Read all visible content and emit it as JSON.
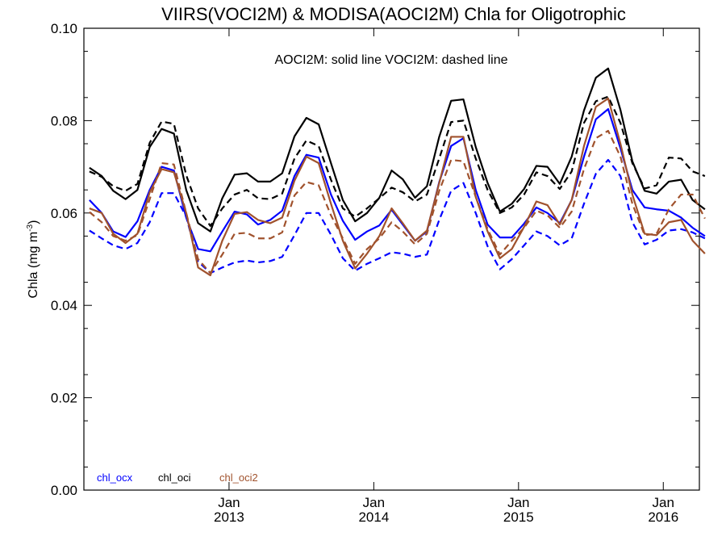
{
  "chart_data": {
    "type": "line",
    "title": "VIIRS(VOCI2M) & MODISA(AOCI2M)  Chla for Oligotrophic",
    "annotation": "AOCI2M: solid line   VOCI2M: dashed line",
    "ylabel": "Chla (mg m",
    "ylabel_sup": "-3",
    "ylabel_close": ")",
    "ylim": [
      0.0,
      0.1
    ],
    "yticks": [
      "0.00",
      "0.02",
      "0.04",
      "0.06",
      "0.08",
      "0.10"
    ],
    "ytick_values": [
      0.0,
      0.02,
      0.04,
      0.06,
      0.08,
      0.1
    ],
    "xlim": [
      "2012-01-01",
      "2016-04-01"
    ],
    "xticks": [
      {
        "top": "Jan",
        "bottom": "2013",
        "date": "2013-01-01"
      },
      {
        "top": "Jan",
        "bottom": "2014",
        "date": "2014-01-01"
      },
      {
        "top": "Jan",
        "bottom": "2015",
        "date": "2015-01-01"
      },
      {
        "top": "Jan",
        "bottom": "2016",
        "date": "2016-01-01"
      }
    ],
    "x": [
      "2012-01",
      "2012-02",
      "2012-03",
      "2012-04",
      "2012-05",
      "2012-06",
      "2012-07",
      "2012-08",
      "2012-09",
      "2012-10",
      "2012-11",
      "2012-12",
      "2013-01",
      "2013-02",
      "2013-03",
      "2013-04",
      "2013-05",
      "2013-06",
      "2013-07",
      "2013-08",
      "2013-09",
      "2013-10",
      "2013-11",
      "2013-12",
      "2014-01",
      "2014-02",
      "2014-03",
      "2014-04",
      "2014-05",
      "2014-06",
      "2014-07",
      "2014-08",
      "2014-09",
      "2014-10",
      "2014-11",
      "2014-12",
      "2015-01",
      "2015-02",
      "2015-03",
      "2015-04",
      "2015-05",
      "2015-06",
      "2015-07",
      "2015-08",
      "2015-09",
      "2015-10",
      "2015-11",
      "2015-12",
      "2016-01",
      "2016-02",
      "2016-03",
      "2016-04"
    ],
    "series": [
      {
        "name": "chl_oci",
        "product": "AOCI2M",
        "color": "#000000",
        "dash": false,
        "values": [
          0.0698,
          0.068,
          0.0648,
          0.063,
          0.065,
          0.0743,
          0.0782,
          0.0772,
          0.065,
          0.0578,
          0.056,
          0.0632,
          0.0683,
          0.0686,
          0.0668,
          0.0668,
          0.0686,
          0.0766,
          0.0806,
          0.0792,
          0.0708,
          0.0628,
          0.0582,
          0.06,
          0.0633,
          0.0692,
          0.0673,
          0.0633,
          0.0658,
          0.0765,
          0.0843,
          0.0846,
          0.0743,
          0.0665,
          0.0603,
          0.062,
          0.0652,
          0.0702,
          0.07,
          0.0663,
          0.0722,
          0.0822,
          0.0893,
          0.0913,
          0.0823,
          0.0712,
          0.0648,
          0.0642,
          0.0668,
          0.0672,
          0.0628,
          0.0608
        ]
      },
      {
        "name": "chl_oci",
        "product": "VOCI2M",
        "color": "#000000",
        "dash": true,
        "values": [
          0.069,
          0.0678,
          0.0658,
          0.0648,
          0.0663,
          0.0752,
          0.0798,
          0.0793,
          0.0682,
          0.061,
          0.0572,
          0.061,
          0.064,
          0.065,
          0.0632,
          0.063,
          0.0642,
          0.0718,
          0.0757,
          0.0745,
          0.0672,
          0.061,
          0.0592,
          0.061,
          0.0632,
          0.0655,
          0.0645,
          0.0625,
          0.064,
          0.0718,
          0.0797,
          0.08,
          0.0718,
          0.065,
          0.06,
          0.0612,
          0.064,
          0.0688,
          0.068,
          0.0652,
          0.069,
          0.0795,
          0.0842,
          0.0852,
          0.0795,
          0.0708,
          0.0653,
          0.066,
          0.072,
          0.0718,
          0.069,
          0.068
        ]
      },
      {
        "name": "chl_ocx",
        "product": "AOCI2M",
        "color": "#0000ff",
        "dash": false,
        "values": [
          0.0628,
          0.06,
          0.056,
          0.0548,
          0.0582,
          0.065,
          0.07,
          0.0692,
          0.059,
          0.0522,
          0.0517,
          0.056,
          0.0603,
          0.0597,
          0.0575,
          0.0585,
          0.0605,
          0.068,
          0.0726,
          0.072,
          0.064,
          0.0583,
          0.0542,
          0.056,
          0.0573,
          0.0607,
          0.0575,
          0.054,
          0.056,
          0.0667,
          0.0745,
          0.0762,
          0.065,
          0.0575,
          0.0547,
          0.0547,
          0.0577,
          0.0612,
          0.06,
          0.0578,
          0.0628,
          0.0722,
          0.0803,
          0.0825,
          0.074,
          0.065,
          0.0612,
          0.0608,
          0.0605,
          0.059,
          0.0568,
          0.055
        ]
      },
      {
        "name": "chl_ocx",
        "product": "VOCI2M",
        "color": "#0000ff",
        "dash": true,
        "values": [
          0.0562,
          0.0545,
          0.053,
          0.0522,
          0.0535,
          0.058,
          0.0643,
          0.0643,
          0.0592,
          0.0495,
          0.047,
          0.0482,
          0.0493,
          0.0497,
          0.0493,
          0.0496,
          0.0505,
          0.0552,
          0.06,
          0.06,
          0.0553,
          0.0502,
          0.0475,
          0.049,
          0.0502,
          0.0515,
          0.0512,
          0.0505,
          0.051,
          0.0585,
          0.0648,
          0.0665,
          0.06,
          0.0528,
          0.0478,
          0.05,
          0.053,
          0.056,
          0.055,
          0.053,
          0.0545,
          0.062,
          0.0685,
          0.0715,
          0.068,
          0.058,
          0.0532,
          0.0542,
          0.0562,
          0.0565,
          0.0558,
          0.0545
        ]
      },
      {
        "name": "chl_oci2",
        "product": "AOCI2M",
        "color": "#a0522d",
        "dash": false,
        "values": [
          0.061,
          0.06,
          0.0555,
          0.0535,
          0.0555,
          0.0645,
          0.0695,
          0.0688,
          0.06,
          0.0482,
          0.0465,
          0.054,
          0.0598,
          0.0602,
          0.0585,
          0.0578,
          0.059,
          0.067,
          0.0722,
          0.0708,
          0.062,
          0.054,
          0.048,
          0.0512,
          0.055,
          0.061,
          0.0578,
          0.054,
          0.0562,
          0.0665,
          0.0765,
          0.0765,
          0.0635,
          0.056,
          0.0502,
          0.0522,
          0.057,
          0.0625,
          0.0617,
          0.0575,
          0.0628,
          0.0745,
          0.083,
          0.0848,
          0.075,
          0.064,
          0.0555,
          0.0552,
          0.058,
          0.0585,
          0.054,
          0.0512
        ]
      },
      {
        "name": "chl_oci2",
        "product": "VOCI2M",
        "color": "#a0522d",
        "dash": true,
        "values": [
          0.0602,
          0.058,
          0.055,
          0.054,
          0.0552,
          0.063,
          0.0708,
          0.0705,
          0.06,
          0.05,
          0.047,
          0.051,
          0.0555,
          0.0557,
          0.0545,
          0.0545,
          0.0558,
          0.0638,
          0.0667,
          0.066,
          0.0595,
          0.0545,
          0.049,
          0.0522,
          0.0545,
          0.058,
          0.056,
          0.0532,
          0.0555,
          0.0648,
          0.0715,
          0.0712,
          0.0635,
          0.0565,
          0.051,
          0.054,
          0.0568,
          0.0605,
          0.0595,
          0.0568,
          0.0603,
          0.0695,
          0.0762,
          0.0778,
          0.0722,
          0.062,
          0.0552,
          0.0555,
          0.0608,
          0.064,
          0.064,
          0.0588
        ]
      }
    ],
    "legend": [
      {
        "label": "chl_ocx",
        "color": "#0000ff"
      },
      {
        "label": "chl_oci",
        "color": "#000000"
      },
      {
        "label": "chl_oci2",
        "color": "#a0522d"
      }
    ],
    "legend_placement": "bottom-left",
    "grid": false
  }
}
